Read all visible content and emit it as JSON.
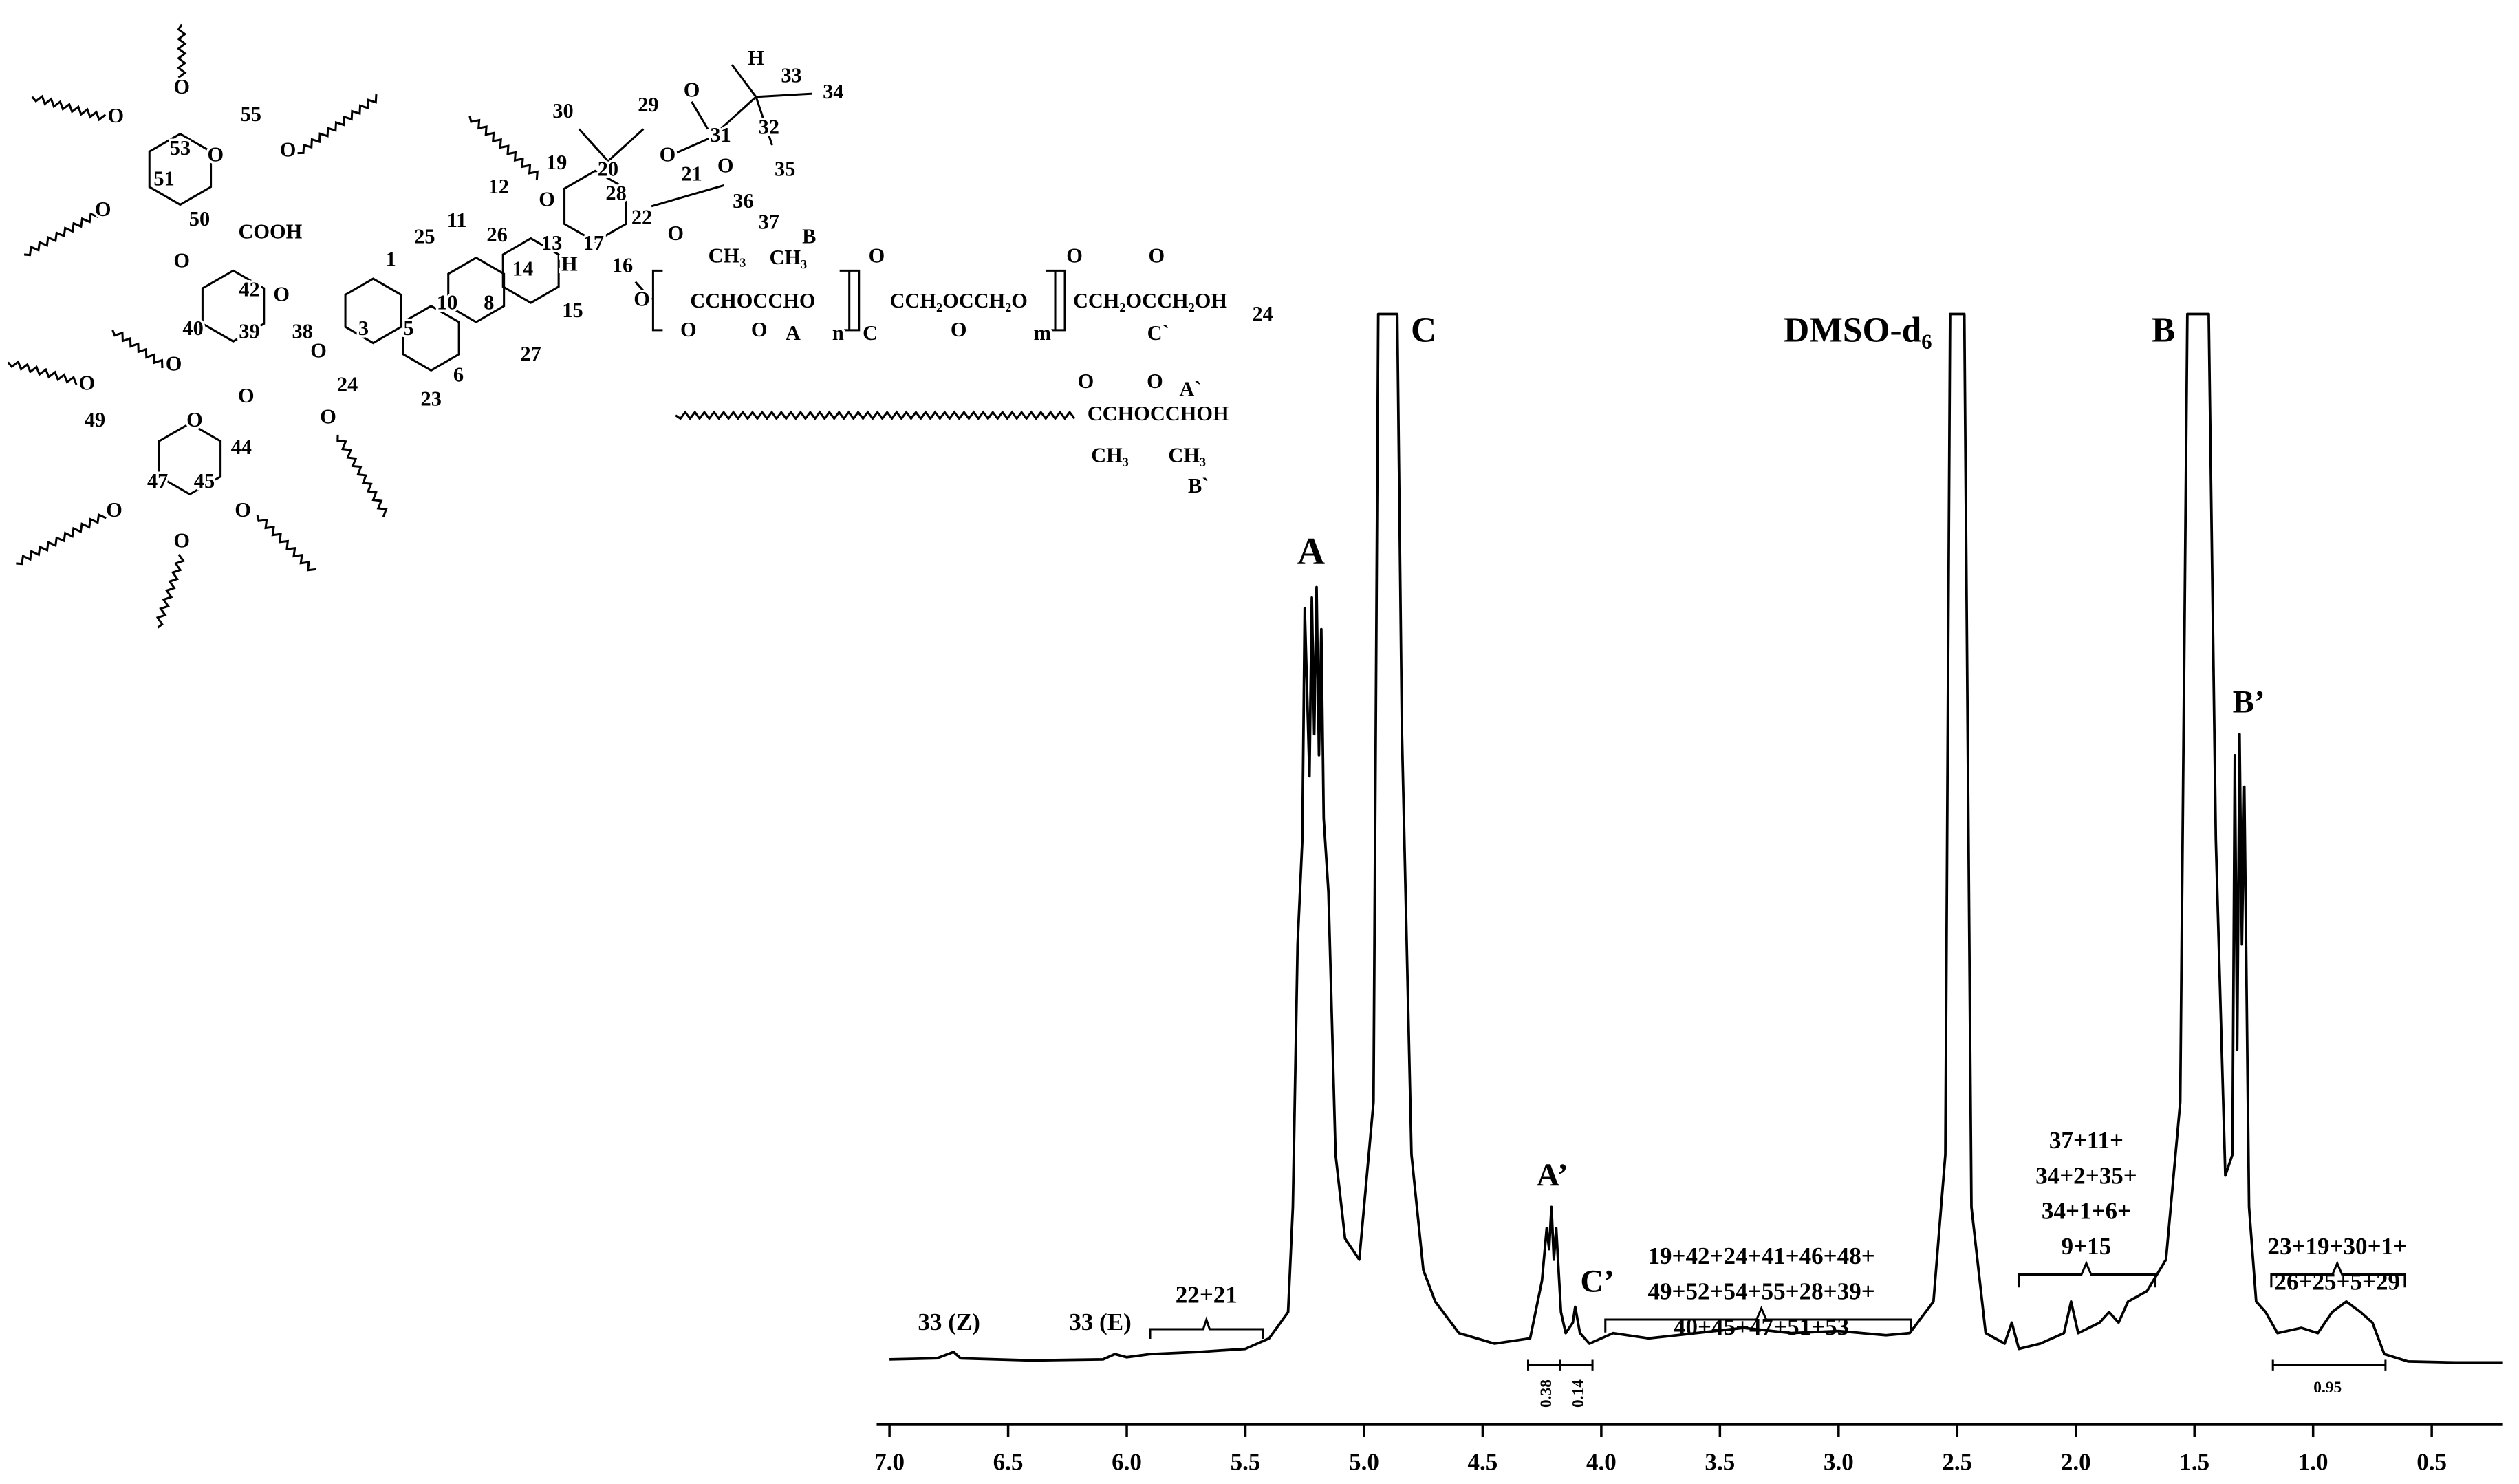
{
  "chart_data": {
    "type": "line",
    "x": [
      7.0,
      6.8,
      6.73,
      6.7,
      6.4,
      6.1,
      6.05,
      6.0,
      5.9,
      5.7,
      5.5,
      5.4,
      5.32,
      5.3,
      5.28,
      5.26,
      5.25,
      5.23,
      5.22,
      5.21,
      5.2,
      5.19,
      5.18,
      5.17,
      5.15,
      5.12,
      5.08,
      5.02,
      4.96,
      4.94,
      4.93,
      4.9,
      4.87,
      4.86,
      4.84,
      4.8,
      4.75,
      4.7,
      4.6,
      4.45,
      4.3,
      4.25,
      4.23,
      4.22,
      4.21,
      4.2,
      4.19,
      4.17,
      4.15,
      4.12,
      4.11,
      4.09,
      4.05,
      3.95,
      3.8,
      3.6,
      3.4,
      3.2,
      3.0,
      2.8,
      2.7,
      2.6,
      2.55,
      2.53,
      2.51,
      2.49,
      2.47,
      2.44,
      2.38,
      2.3,
      2.27,
      2.24,
      2.15,
      2.05,
      2.02,
      1.99,
      1.9,
      1.86,
      1.82,
      1.78,
      1.7,
      1.62,
      1.56,
      1.53,
      1.5,
      1.47,
      1.44,
      1.41,
      1.37,
      1.34,
      1.33,
      1.32,
      1.31,
      1.3,
      1.29,
      1.27,
      1.24,
      1.2,
      1.15,
      1.05,
      0.98,
      0.92,
      0.86,
      0.8,
      0.75,
      0.7,
      0.6,
      0.4,
      0.2
    ],
    "values": [
      0.5,
      0.6,
      1.2,
      0.6,
      0.4,
      0.5,
      1,
      0.7,
      1,
      1.2,
      1.5,
      2.5,
      5,
      15,
      40,
      50,
      72,
      56,
      73,
      60,
      74,
      58,
      70,
      52,
      45,
      20,
      12,
      10,
      25,
      100,
      100,
      100,
      100,
      100,
      60,
      20,
      9,
      6,
      3,
      2,
      2.5,
      8,
      13,
      11,
      15,
      10,
      13,
      5,
      3,
      4,
      5.5,
      3,
      2,
      3,
      2.5,
      3,
      3.5,
      3,
      3.2,
      2.8,
      3,
      6,
      20,
      100,
      100,
      100,
      100,
      15,
      3,
      2,
      4,
      1.5,
      2,
      3,
      6,
      3,
      4,
      5,
      4,
      6,
      7,
      10,
      25,
      100,
      100,
      100,
      100,
      50,
      18,
      20,
      58,
      30,
      60,
      40,
      55,
      15,
      6,
      5,
      3,
      3.5,
      3,
      5,
      6,
      5,
      4,
      1,
      0.3,
      0.2,
      0.2
    ],
    "color": "#000000",
    "xlim": [
      7.05,
      0.2
    ],
    "ylim": [
      0,
      100
    ],
    "xticks": [
      {
        "value": 7,
        "label": "7.0"
      },
      6.5,
      {
        "value": 6,
        "label": "6.0"
      },
      5.5,
      {
        "value": 5,
        "label": "5.0"
      },
      4.5,
      {
        "value": 4,
        "label": "4.0"
      },
      3.5,
      {
        "value": 3,
        "label": "3.0"
      },
      2.5,
      {
        "value": 2,
        "label": "2.0"
      },
      1.5,
      {
        "value": 1,
        "label": "1.0"
      },
      0.5
    ],
    "annotations": [
      "A",
      "C",
      "DMSO-d₆",
      "B",
      "A’",
      "C’",
      "B’",
      "33 (Z)",
      "33 (E)",
      "22+21",
      "19+42+24+41+46+48+",
      "49+52+54+55+28+39+",
      "40+45+47+51+53",
      "37+11+",
      "34+2+35+",
      "34+1+6+",
      "9+15",
      "23+19+30+1+",
      "26+25+5+29"
    ],
    "integrals": [
      0.38,
      0.14,
      0.95
    ]
  },
  "structure": {
    "labels": [
      "H",
      "33",
      "34",
      "30",
      "29",
      "O",
      "31",
      "32",
      "35",
      "O",
      "21",
      "19",
      "20",
      "O",
      "28",
      "O",
      "36",
      "37",
      "B",
      "12",
      "11",
      "25",
      "26",
      "13",
      "H",
      "17",
      "22",
      "O",
      "16",
      "O",
      "1",
      "10",
      "8",
      "14",
      "27",
      "15",
      "3",
      "5",
      "6",
      "O",
      "24",
      "23",
      "O",
      "O",
      "O",
      "53",
      "O",
      "55",
      "O",
      "51",
      "50",
      "O",
      "O",
      "COOH",
      "42",
      "O",
      "40",
      "39",
      "38",
      "O",
      "O",
      "O",
      "49",
      "O",
      "44",
      "47",
      "45",
      "O",
      "O",
      "O",
      "CH₃",
      "CH₃",
      "CCHOCCHO",
      "O",
      "O",
      "A",
      "n",
      "O",
      "CCH₂OCCH₂O",
      "O",
      "C",
      "m",
      "O",
      "O",
      "CCH₂OCCH₂OH",
      "C`",
      "24",
      "O",
      "O",
      "A`",
      "CCHOCCHOH",
      "CH₃",
      "CH₃",
      "B`"
    ]
  }
}
